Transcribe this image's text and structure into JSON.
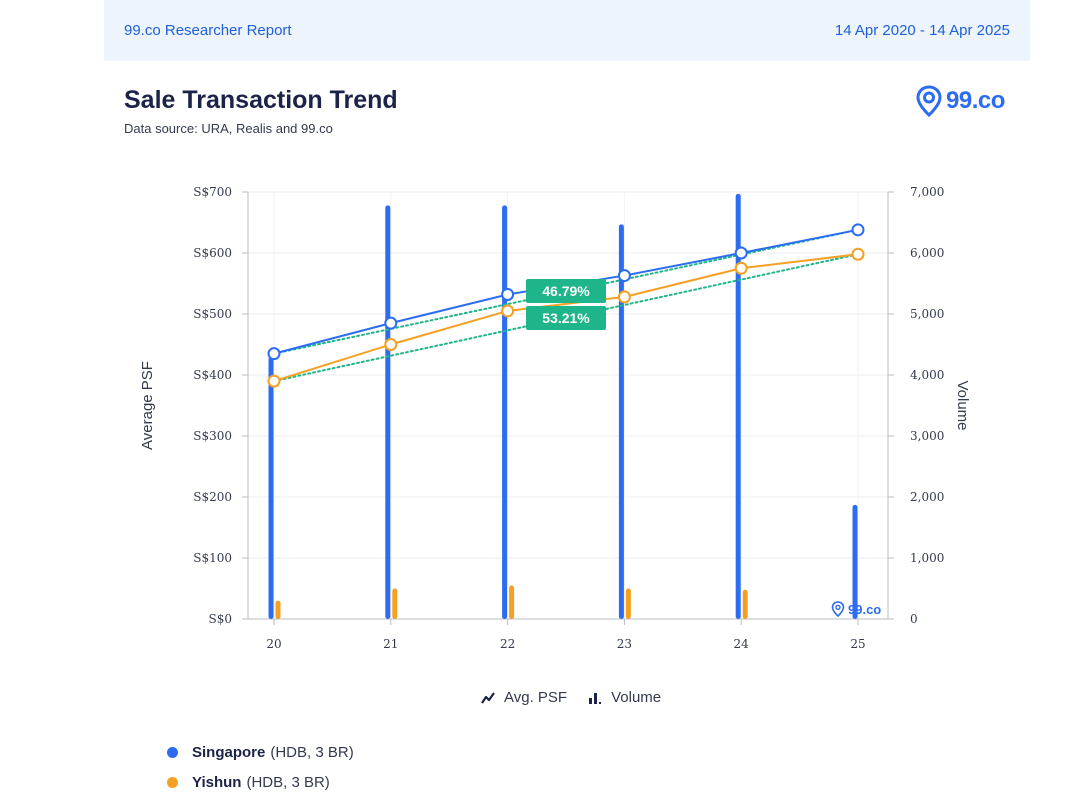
{
  "header": {
    "report_title": "99.co Researcher Report",
    "date_range": "14 Apr 2020 - 14 Apr 2025"
  },
  "page": {
    "title": "Sale Transaction Trend",
    "subtitle": "Data source: URA, Realis and 99.co",
    "logo_text": "99.co"
  },
  "colors": {
    "singapore": "#2c6cf0",
    "yishun": "#f5a022",
    "trend": "#1fb58a",
    "badge": "#1fb58a"
  },
  "chart_data": {
    "type": "bar+line",
    "categories": [
      "20",
      "21",
      "22",
      "23",
      "24",
      "25"
    ],
    "ylabel_left": "Average PSF",
    "ylabel_right": "Volume",
    "ylim_left": [
      0,
      700
    ],
    "ylim_right": [
      0,
      7000
    ],
    "left_ticks": [
      "S$0",
      "S$100",
      "S$200",
      "S$300",
      "S$400",
      "S$500",
      "S$600",
      "S$700"
    ],
    "right_ticks": [
      "0",
      "1,000",
      "2,000",
      "3,000",
      "4,000",
      "5,000",
      "6,000",
      "7,000"
    ],
    "grid": true,
    "series": [
      {
        "name": "Singapore (HDB, 3 BR)",
        "psf": [
          435,
          485,
          532,
          563,
          600,
          638
        ],
        "volume": [
          4300,
          6780,
          6780,
          6470,
          6970,
          1870
        ]
      },
      {
        "name": "Yishun (HDB, 3 BR)",
        "psf": [
          390,
          450,
          505,
          528,
          575,
          598
        ],
        "volume": [
          300,
          500,
          550,
          500,
          480,
          0
        ]
      }
    ],
    "annotations": [
      "46.79%",
      "53.21%"
    ],
    "watermark": "99.co"
  },
  "legend": {
    "psf_label": "Avg. PSF",
    "volume_label": "Volume",
    "singapore_name": "Singapore",
    "singapore_detail": "(HDB, 3 BR)",
    "yishun_name": "Yishun",
    "yishun_detail": "(HDB, 3 BR)"
  }
}
